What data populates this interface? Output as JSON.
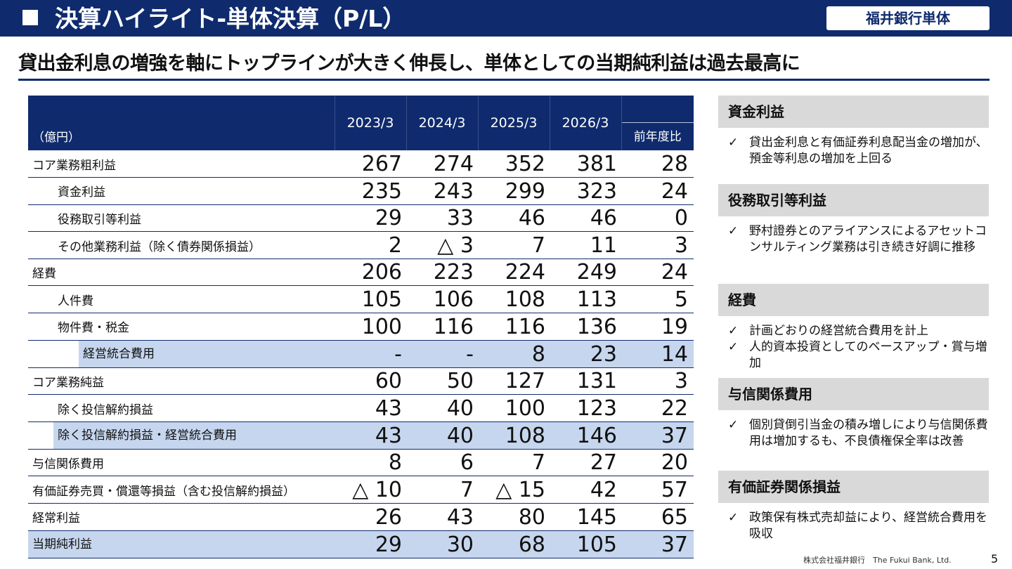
{
  "header": {
    "title": "決算ハイライト-単体決算（P/L）",
    "bank_label": "福井銀行単体"
  },
  "subtitle": "貸出金利息の増強を軸にトップラインが大きく伸長し、単体としての当期純利益は過去最高に",
  "table": {
    "unit_label": "（億円）",
    "years": [
      "2023/3",
      "2024/3",
      "2025/3",
      "2026/3"
    ],
    "yoy_label": "前年度比",
    "rows": [
      {
        "label": "コア業務粗利益",
        "values": [
          "267",
          "274",
          "352",
          "381"
        ],
        "yoy": "28"
      },
      {
        "label": "資金利益",
        "values": [
          "235",
          "243",
          "299",
          "323"
        ],
        "yoy": "24"
      },
      {
        "label": "役務取引等利益",
        "values": [
          "29",
          "33",
          "46",
          "46"
        ],
        "yoy": "0"
      },
      {
        "label": "その他業務利益（除く債券関係損益）",
        "values": [
          "2",
          "△ 3",
          "7",
          "11"
        ],
        "yoy": "3"
      },
      {
        "label": "経費",
        "values": [
          "206",
          "223",
          "224",
          "249"
        ],
        "yoy": "24"
      },
      {
        "label": "人件費",
        "values": [
          "105",
          "106",
          "108",
          "113"
        ],
        "yoy": "5"
      },
      {
        "label": "物件費・税金",
        "values": [
          "100",
          "116",
          "116",
          "136"
        ],
        "yoy": "19"
      },
      {
        "label": "経営統合費用",
        "values": [
          "-",
          "-",
          "8",
          "23"
        ],
        "yoy": "14"
      },
      {
        "label": "コア業務純益",
        "values": [
          "60",
          "50",
          "127",
          "131"
        ],
        "yoy": "3"
      },
      {
        "label": "除く投信解約損益",
        "values": [
          "43",
          "40",
          "100",
          "123"
        ],
        "yoy": "22"
      },
      {
        "label": "除く投信解約損益・経営統合費用",
        "values": [
          "43",
          "40",
          "108",
          "146"
        ],
        "yoy": "37"
      },
      {
        "label": "与信関係費用",
        "values": [
          "8",
          "6",
          "7",
          "27"
        ],
        "yoy": "20"
      },
      {
        "label": "有価証券売買・償還等損益（含む投信解約損益）",
        "values": [
          "△ 10",
          "7",
          "△ 15",
          "42"
        ],
        "yoy": "57"
      },
      {
        "label": "経常利益",
        "values": [
          "26",
          "43",
          "80",
          "145"
        ],
        "yoy": "65"
      },
      {
        "label": "当期純利益",
        "values": [
          "29",
          "30",
          "68",
          "105"
        ],
        "yoy": "37"
      }
    ]
  },
  "side": {
    "check_mark": "✓",
    "sections": [
      {
        "title": "資金利益",
        "items": [
          "貸出金利息と有価証券利息配当金の増加が、預金等利息の増加を上回る"
        ]
      },
      {
        "title": "役務取引等利益",
        "items": [
          "野村證券とのアライアンスによるアセットコンサルティング業務は引き続き好調に推移"
        ]
      },
      {
        "title": "経費",
        "items": [
          "計画どおりの経営統合費用を計上",
          "人的資本投資としてのベースアップ・賞与増加"
        ]
      },
      {
        "title": "与信関係費用",
        "items": [
          "個別貸倒引当金の積み増しにより与信関係費用は増加するも、不良債権保全率は改善"
        ]
      },
      {
        "title": "有価証券関係損益",
        "items": [
          "政策保有株式売却益により、経営統合費用を吸収"
        ]
      }
    ]
  },
  "footer": {
    "company": "株式会社福井銀行　The Fukui Bank, Ltd.",
    "page": "5"
  }
}
